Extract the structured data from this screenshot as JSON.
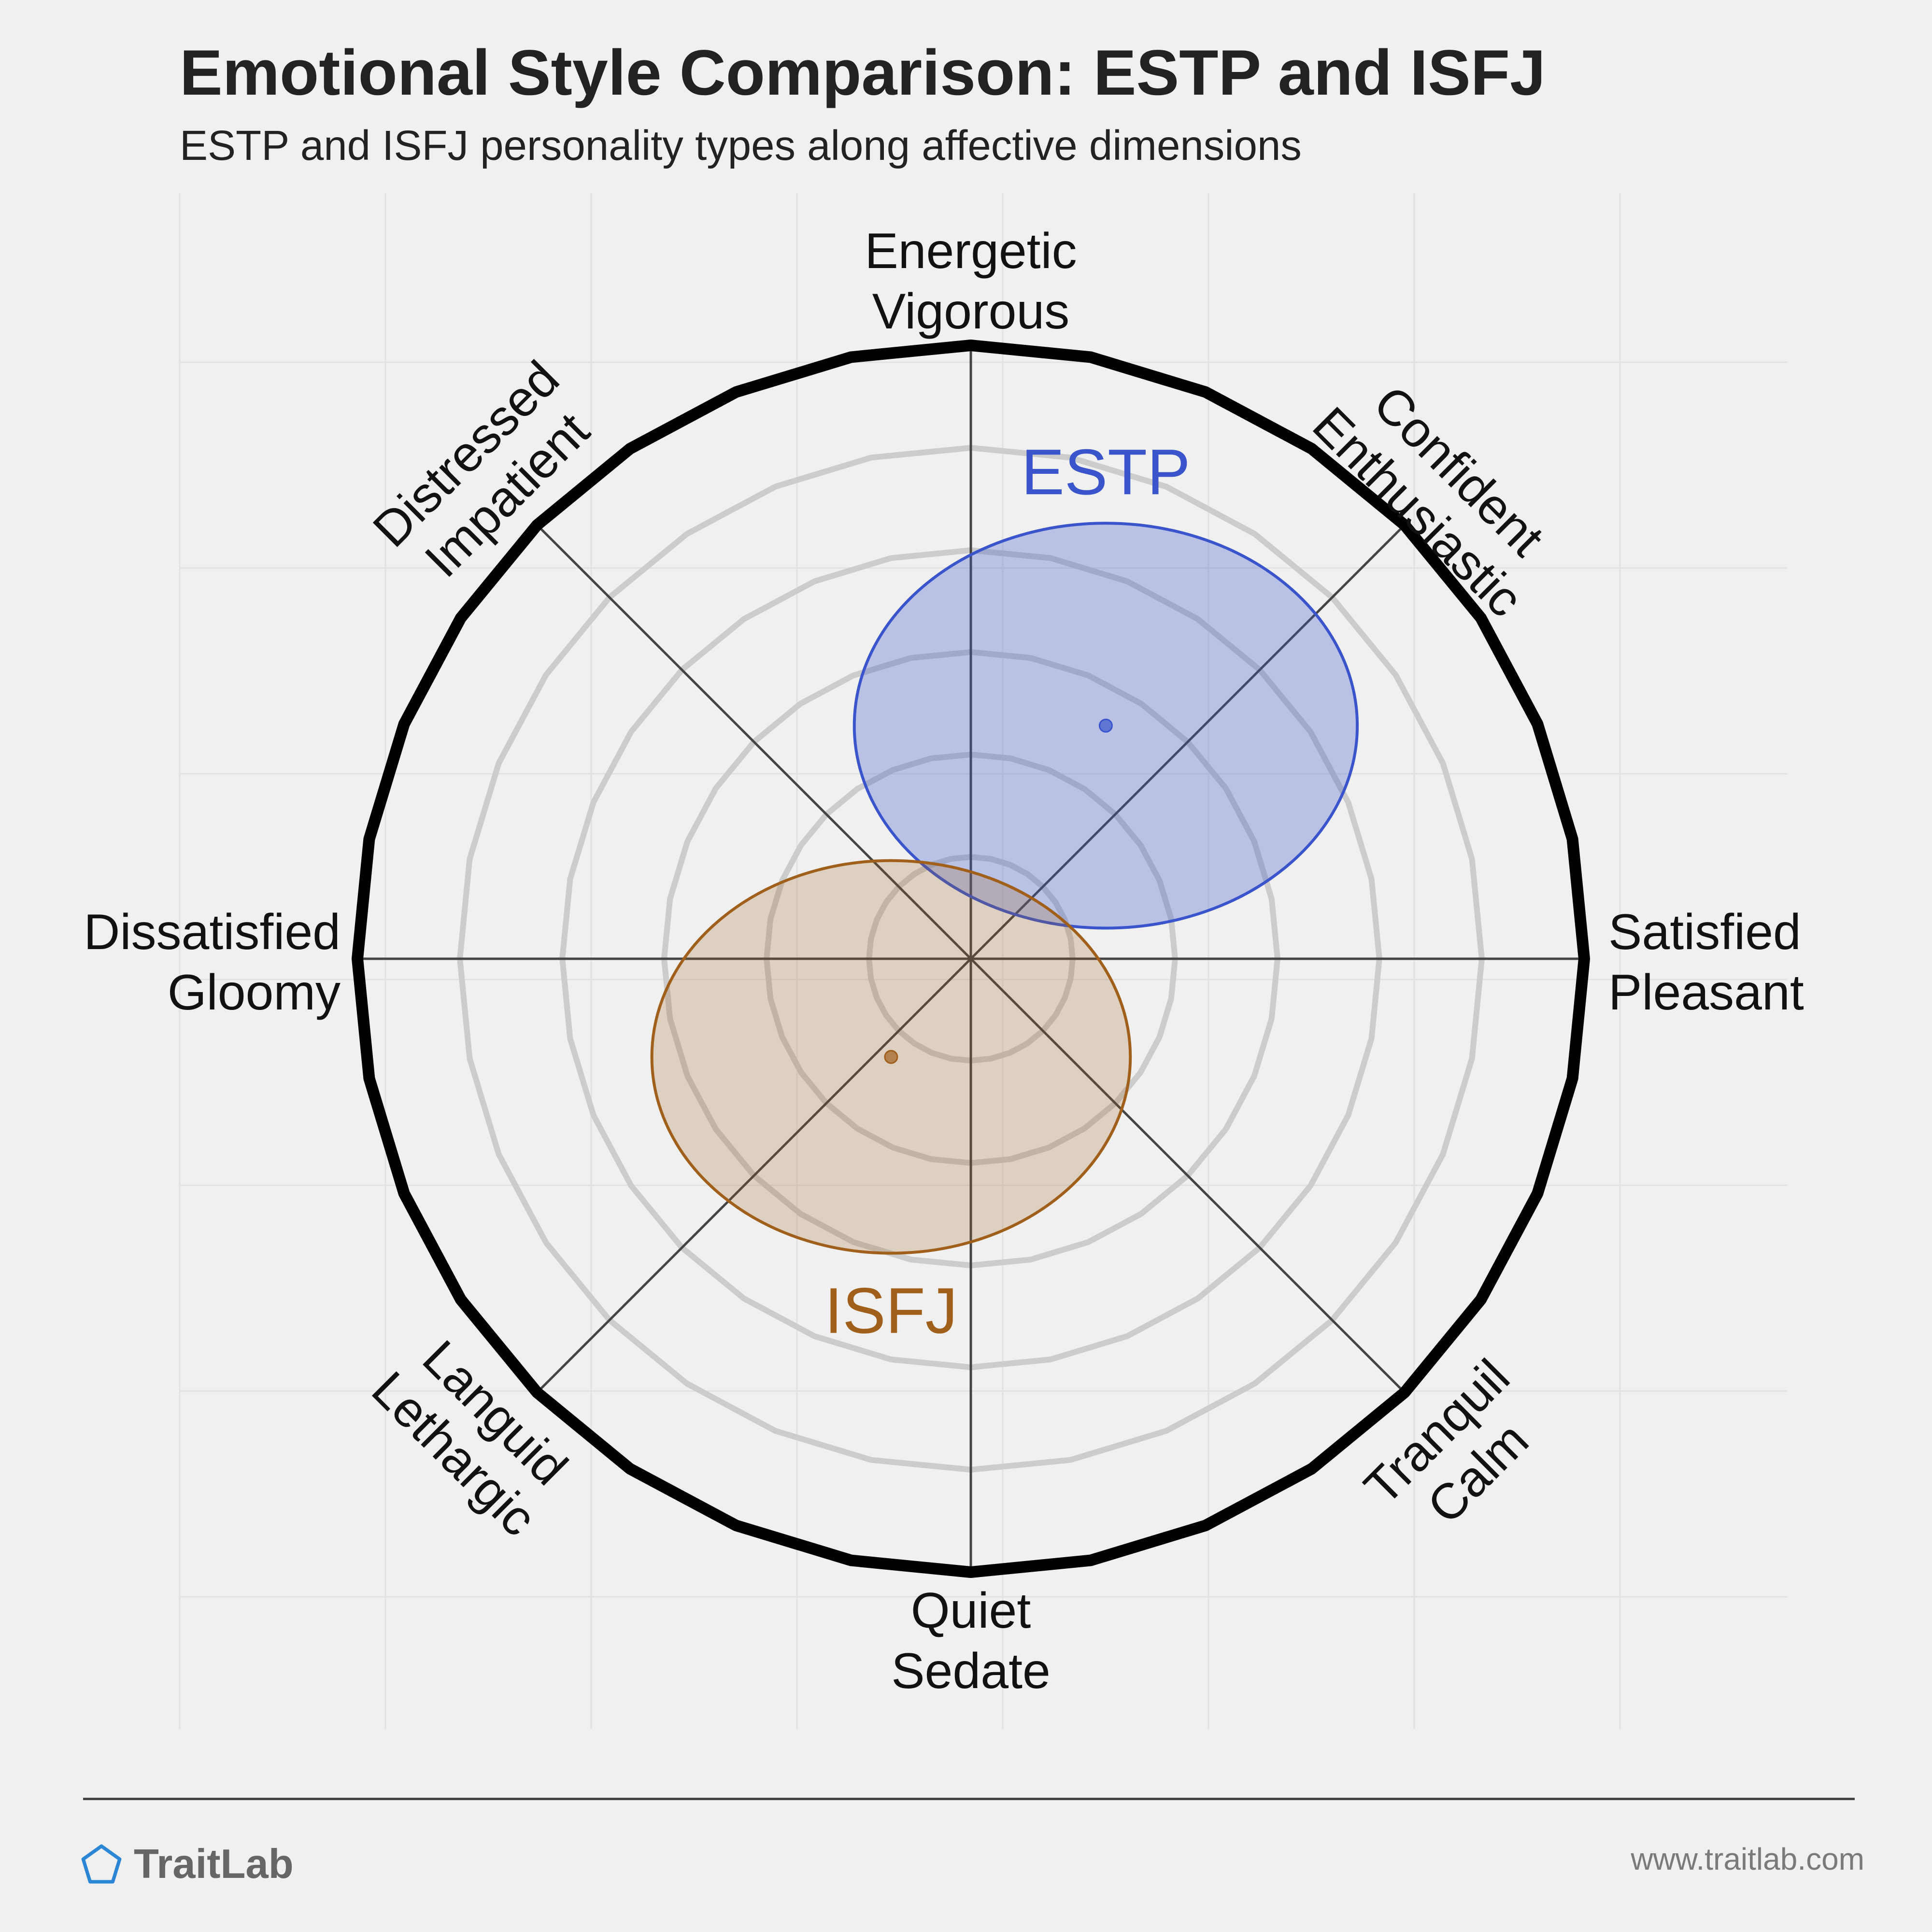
{
  "header": {
    "title": "Emotional Style Comparison: ESTP and ISFJ",
    "subtitle": "ESTP and ISFJ personality types along affective dimensions"
  },
  "chart_data": {
    "type": "scatter",
    "title": "Emotional Style Comparison: ESTP and ISFJ",
    "subtitle": "ESTP and ISFJ personality types along affective dimensions",
    "x_axis": {
      "negative": [
        "Dissatisfied",
        "Gloomy"
      ],
      "positive": [
        "Satisfied",
        "Pleasant"
      ]
    },
    "y_axis": {
      "negative": [
        "Quiet",
        "Sedate"
      ],
      "positive": [
        "Energetic",
        "Vigorous"
      ]
    },
    "diagonal_labels": {
      "top_right": [
        "Confident",
        "Enthusiastic"
      ],
      "top_left": [
        "Distressed",
        "Impatient"
      ],
      "bottom_left": [
        "Languid",
        "Lethargic"
      ],
      "bottom_right": [
        "Tranquil",
        "Calm"
      ]
    },
    "xlim": [
      -1,
      1
    ],
    "ylim": [
      -1,
      1
    ],
    "grid": "concentric rings",
    "series": [
      {
        "name": "ESTP",
        "x": 0.22,
        "y": 0.38,
        "spread_x": 0.41,
        "spread_y": 0.33,
        "color": "#3a55cc"
      },
      {
        "name": "ISFJ",
        "x": -0.13,
        "y": -0.16,
        "spread_x": 0.39,
        "spread_y": 0.32,
        "color": "#a0601c"
      }
    ]
  },
  "footer": {
    "brand": "TraitLab",
    "url": "www.traitlab.com"
  },
  "colors": {
    "background": "#f0f0f0",
    "outer_ring": "#000000",
    "inner_rings": "#cccccc",
    "axes": "#444444",
    "estp": "#3a55cc",
    "isfj": "#a0601c"
  }
}
